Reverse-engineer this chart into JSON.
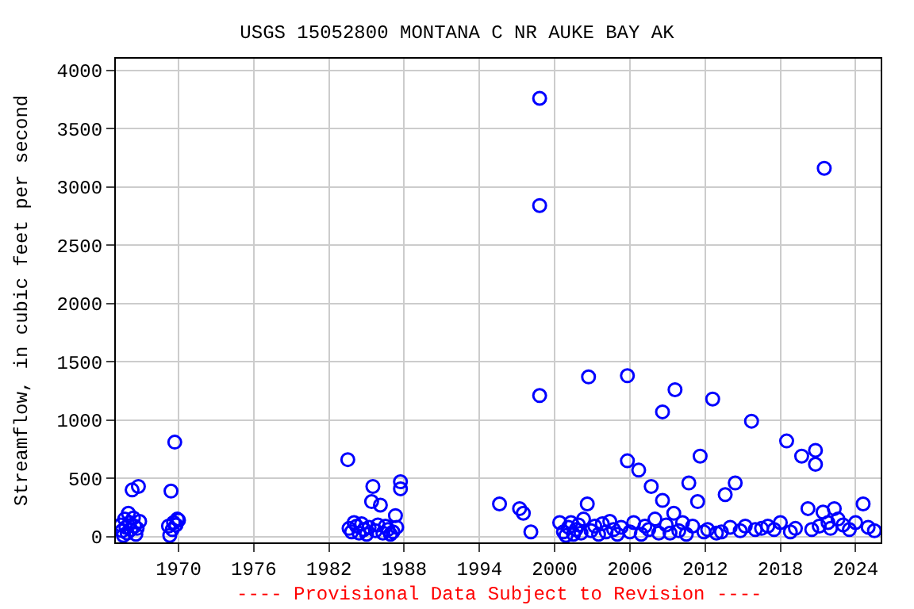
{
  "chart_data": {
    "type": "scatter",
    "title": "USGS 15052800 MONTANA C NR AUKE BAY AK",
    "ylabel": "Streamflow, in cubic feet per second",
    "annotations": [
      "---- Provisional Data Subject to Revision ----"
    ],
    "x": [
      1965.4,
      1965.5,
      1965.6,
      1965.7,
      1965.8,
      1965.9,
      1966.0,
      1966.1,
      1966.2,
      1966.3,
      1966.4,
      1966.5,
      1966.6,
      1966.7,
      1966.8,
      1966.9,
      1969.2,
      1969.3,
      1969.4,
      1969.5,
      1969.6,
      1969.7,
      1969.8,
      1969.9,
      1970.0,
      1983.5,
      1983.6,
      1983.8,
      1984.0,
      1984.2,
      1984.4,
      1984.6,
      1984.8,
      1985.0,
      1985.2,
      1985.4,
      1985.5,
      1985.7,
      1985.9,
      1986.1,
      1986.3,
      1986.5,
      1986.7,
      1986.9,
      1987.1,
      1987.3,
      1987.4,
      1987.7,
      1987.7,
      1995.6,
      1997.2,
      1997.5,
      1998.1,
      1998.8,
      1998.8,
      1998.8,
      2000.4,
      2000.7,
      2000.9,
      2001.1,
      2001.3,
      2001.5,
      2001.7,
      2001.9,
      2002.1,
      2002.3,
      2002.6,
      2002.7,
      2002.9,
      2003.2,
      2003.5,
      2003.8,
      2004.1,
      2004.4,
      2004.7,
      2005.0,
      2005.3,
      2005.8,
      2005.8,
      2006.0,
      2006.3,
      2006.7,
      2006.9,
      2007.2,
      2007.5,
      2007.7,
      2008.0,
      2008.3,
      2008.6,
      2008.6,
      2008.9,
      2009.2,
      2009.5,
      2009.6,
      2009.9,
      2010.2,
      2010.5,
      2010.7,
      2011.0,
      2011.4,
      2011.6,
      2011.9,
      2012.2,
      2012.6,
      2012.9,
      2013.3,
      2013.6,
      2014.0,
      2014.4,
      2014.8,
      2015.2,
      2015.7,
      2016.0,
      2016.5,
      2017.0,
      2017.5,
      2018.0,
      2018.5,
      2018.8,
      2019.2,
      2019.7,
      2020.2,
      2020.5,
      2020.8,
      2020.8,
      2021.1,
      2021.4,
      2021.5,
      2021.8,
      2022.0,
      2022.3,
      2022.6,
      2023.0,
      2023.5,
      2024.0,
      2024.6,
      2025.0,
      2025.5
    ],
    "values": [
      100,
      50,
      10,
      150,
      80,
      30,
      200,
      120,
      60,
      400,
      160,
      90,
      20,
      70,
      430,
      130,
      90,
      10,
      390,
      60,
      120,
      810,
      100,
      150,
      140,
      660,
      70,
      40,
      120,
      90,
      30,
      110,
      60,
      20,
      80,
      300,
      430,
      50,
      100,
      270,
      30,
      90,
      60,
      20,
      40,
      180,
      80,
      470,
      410,
      280,
      240,
      200,
      40,
      3760,
      2840,
      1210,
      120,
      40,
      10,
      80,
      120,
      20,
      60,
      100,
      30,
      150,
      280,
      1370,
      50,
      90,
      20,
      110,
      40,
      130,
      60,
      20,
      80,
      1380,
      650,
      40,
      120,
      570,
      20,
      90,
      60,
      430,
      150,
      30,
      1070,
      310,
      100,
      30,
      200,
      1260,
      50,
      120,
      20,
      460,
      90,
      300,
      690,
      40,
      60,
      1180,
      30,
      40,
      360,
      80,
      460,
      50,
      90,
      990,
      60,
      70,
      90,
      60,
      120,
      820,
      40,
      70,
      690,
      240,
      60,
      740,
      620,
      90,
      210,
      3160,
      120,
      70,
      240,
      150,
      100,
      60,
      120,
      280,
      80,
      50
    ],
    "color": "#0000ff",
    "marker": "circle",
    "xlim": [
      1965,
      2026
    ],
    "xticks": [
      1970,
      1976,
      1982,
      1988,
      1994,
      2000,
      2006,
      2012,
      2018,
      2024
    ],
    "ylim": [
      -50,
      4100
    ],
    "yticks": [
      0,
      500,
      1000,
      1500,
      2000,
      2500,
      3000,
      3500,
      4000
    ],
    "grid": true,
    "legend": false
  }
}
